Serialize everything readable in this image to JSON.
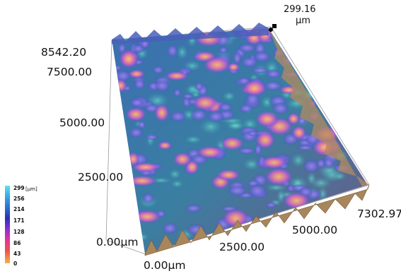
{
  "axes": {
    "z_max": "299.16",
    "z_unit": "µm",
    "y_max": "8542.20",
    "y_ticks": [
      "7500.00",
      "5000.00",
      "2500.00"
    ],
    "y_origin": "0.00µm",
    "x_origin": "0.00µm",
    "x_ticks": [
      "2500.00",
      "5000.00"
    ],
    "x_max": "7302.97"
  },
  "legend": {
    "unit": "[µm]",
    "ticks": [
      "299",
      "256",
      "214",
      "171",
      "128",
      "86",
      "43",
      "0"
    ],
    "colors": [
      "#5fe4f0",
      "#3aa6e2",
      "#2e6fcf",
      "#2a2fb6",
      "#8b2fd4",
      "#e0359a",
      "#ef5248",
      "#f6b24a"
    ]
  }
}
